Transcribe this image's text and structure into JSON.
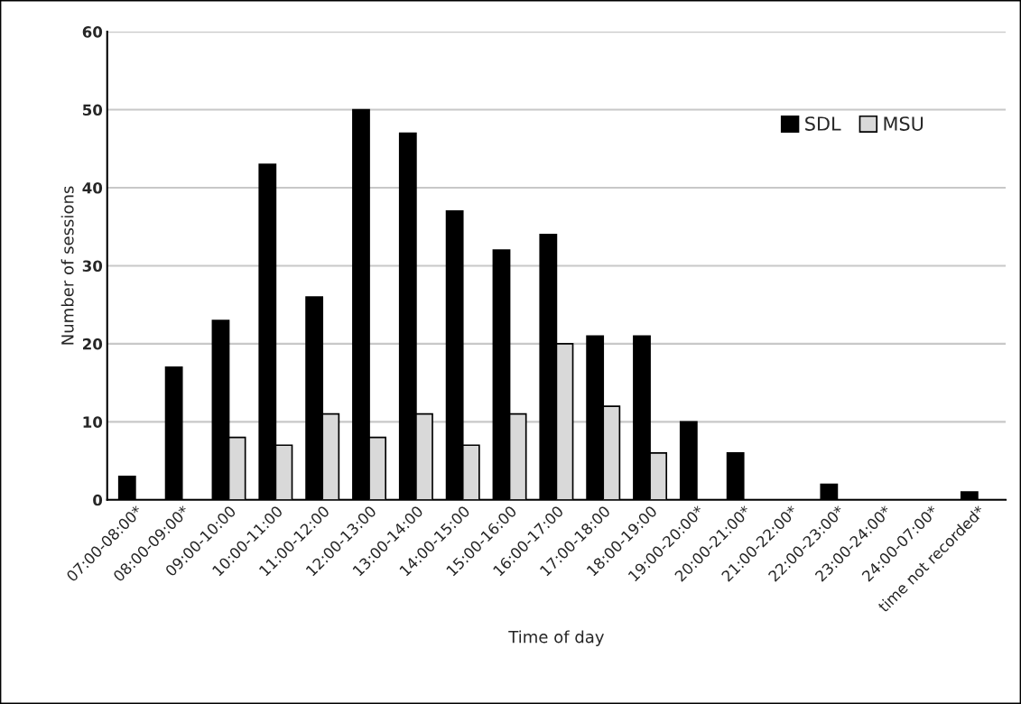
{
  "chart_data": {
    "type": "bar",
    "xlabel": "Time of day",
    "ylabel": "Number of sessions",
    "categories": [
      "07:00-08:00*",
      "08:00-09:00*",
      "09:00-10:00",
      "10:00-11:00",
      "11:00-12:00",
      "12:00-13:00",
      "13:00-14:00",
      "14:00-15:00",
      "15:00-16:00",
      "16:00-17:00",
      "17:00-18:00",
      "18:00-19:00",
      "19:00-20:00*",
      "20:00-21:00*",
      "21:00-22:00*",
      "22:00-23:00*",
      "23:00-24:00*",
      "24:00-07:00*",
      "time not recorded*"
    ],
    "series": [
      {
        "name": "SDL",
        "color": "#000000",
        "values": [
          3,
          17,
          23,
          43,
          26,
          50,
          47,
          37,
          32,
          34,
          21,
          21,
          10,
          6,
          0,
          2,
          0,
          0,
          1
        ]
      },
      {
        "name": "MSU",
        "color": "#d9d9d9",
        "values": [
          null,
          null,
          8,
          7,
          11,
          8,
          11,
          7,
          11,
          20,
          12,
          6,
          null,
          null,
          null,
          null,
          null,
          null,
          null
        ]
      }
    ],
    "ylim": [
      0,
      60
    ],
    "yticks": [
      0,
      10,
      20,
      30,
      40,
      50,
      60
    ],
    "grid": "y",
    "legend": "top right"
  }
}
